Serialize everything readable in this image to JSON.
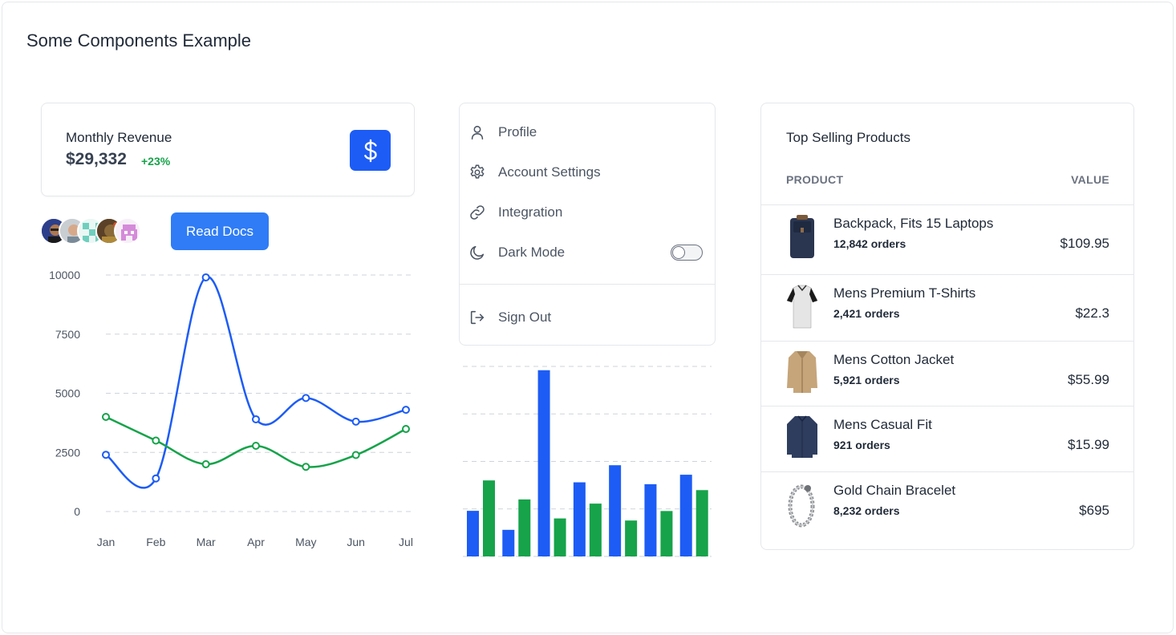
{
  "page": {
    "title": "Some Components Example"
  },
  "revenue": {
    "label": "Monthly Revenue",
    "value": "$29,332",
    "delta": "+23%",
    "icon": "dollar-icon",
    "accent": "#1d5cf5",
    "delta_color": "#16a34a"
  },
  "avatars": [
    "avatar-1",
    "avatar-2",
    "avatar-3",
    "avatar-4",
    "avatar-5"
  ],
  "docs_button": {
    "label": "Read Docs",
    "color": "#2f7cf6"
  },
  "menu": {
    "items": [
      {
        "label": "Profile",
        "icon": "user-icon"
      },
      {
        "label": "Account Settings",
        "icon": "gear-icon"
      },
      {
        "label": "Integration",
        "icon": "link-icon"
      },
      {
        "label": "Dark Mode",
        "icon": "moon-icon",
        "toggle": false
      }
    ],
    "signout": {
      "label": "Sign Out",
      "icon": "sign-out-icon"
    }
  },
  "products": {
    "title": "Top Selling Products",
    "col_product": "PRODUCT",
    "col_value": "VALUE",
    "rows": [
      {
        "name": "Backpack, Fits 15 Laptops",
        "orders": "12,842 orders",
        "value": "$109.95",
        "image": "backpack-image"
      },
      {
        "name": "Mens Premium T-Shirts",
        "orders": "2,421 orders",
        "value": "$22.3",
        "image": "tshirt-image"
      },
      {
        "name": "Mens Cotton Jacket",
        "orders": "5,921 orders",
        "value": "$55.99",
        "image": "jacket-image"
      },
      {
        "name": "Mens Casual Fit",
        "orders": "921 orders",
        "value": "$15.99",
        "image": "casual-shirt-image"
      },
      {
        "name": "Gold Chain Bracelet",
        "orders": "8,232 orders",
        "value": "$695",
        "image": "bracelet-image"
      }
    ]
  },
  "chart_data": [
    {
      "type": "line",
      "categories": [
        "Jan",
        "Feb",
        "Mar",
        "Apr",
        "May",
        "Jun",
        "Jul"
      ],
      "ylim": [
        0,
        10000
      ],
      "yticks": [
        0,
        2500,
        5000,
        7500,
        10000
      ],
      "grid": true,
      "series": [
        {
          "values": [
            2400,
            1400,
            9900,
            3900,
            4800,
            3800,
            4300
          ],
          "color": "#1d5cf5"
        },
        {
          "values": [
            4000,
            3000,
            2000,
            2780,
            1890,
            2390,
            3490
          ],
          "color": "#16a34a"
        }
      ]
    },
    {
      "type": "bar",
      "grid": true,
      "ylim": [
        0,
        10000
      ],
      "series": [
        {
          "values": [
            2400,
            1400,
            9800,
            3900,
            4800,
            3800,
            4300
          ],
          "color": "#1d5cf5"
        },
        {
          "values": [
            4000,
            3000,
            2000,
            2780,
            1890,
            2390,
            3490
          ],
          "color": "#16a34a"
        }
      ]
    }
  ]
}
